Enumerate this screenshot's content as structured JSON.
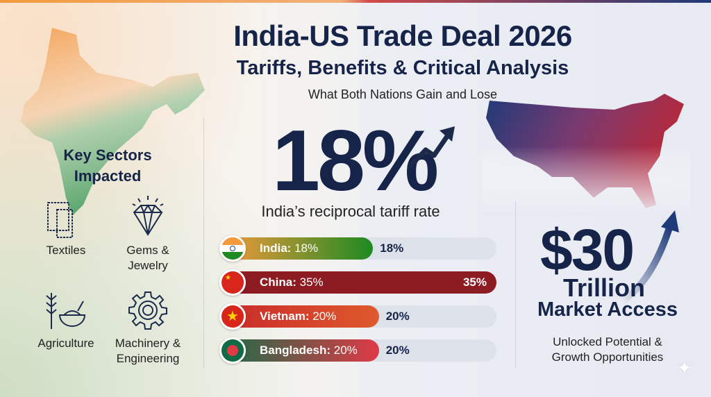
{
  "header": {
    "title": "India-US Trade Deal 2026",
    "subtitle": "Tariffs, Benefits & Critical Analysis",
    "tagline": "What Both Nations Gain and Lose"
  },
  "headline": {
    "value": "18%",
    "caption": "India’s reciprocal tariff rate"
  },
  "sectors": {
    "heading_line1": "Key Sectors",
    "heading_line2": "Impacted",
    "items": [
      {
        "label_line1": "Textiles",
        "label_line2": "",
        "icon": "fabric-swatch-icon"
      },
      {
        "label_line1": "Gems &",
        "label_line2": "Jewelry",
        "icon": "diamond-icon"
      },
      {
        "label_line1": "Agriculture",
        "label_line2": "",
        "icon": "wheat-bowl-icon"
      },
      {
        "label_line1": "Machinery &",
        "label_line2": "Engineering",
        "icon": "gear-icon"
      }
    ]
  },
  "chart_data": {
    "type": "bar",
    "orientation": "horizontal",
    "categories": [
      "India",
      "China",
      "Vietnam",
      "Bangladesh"
    ],
    "values": [
      18,
      35,
      20,
      20
    ],
    "unit": "%",
    "labels": [
      {
        "name": "India:",
        "pct": "18%"
      },
      {
        "name": "China:",
        "pct": "35%"
      },
      {
        "name": "Vietnam:",
        "pct": "20%"
      },
      {
        "name": "Bangladesh:",
        "pct": "20%"
      }
    ],
    "colors": [
      [
        "#f39a3c",
        "#1e8a22"
      ],
      [
        "#8d1b22",
        "#8d1b22"
      ],
      [
        "#c92a2a",
        "#de5a2c"
      ],
      [
        "#1d6b47",
        "#e03a46"
      ]
    ],
    "xlim": [
      0,
      35
    ]
  },
  "market": {
    "value": "$30",
    "unit": "Trillion",
    "label": "Market Access",
    "note_line1": "Unlocked Potential &",
    "note_line2": "Growth Opportunities"
  },
  "colors": {
    "navy": "#16244a",
    "saffron": "#f39a3c",
    "green": "#1e8a22",
    "us_red": "#b8283a",
    "us_blue": "#1f3a78"
  }
}
